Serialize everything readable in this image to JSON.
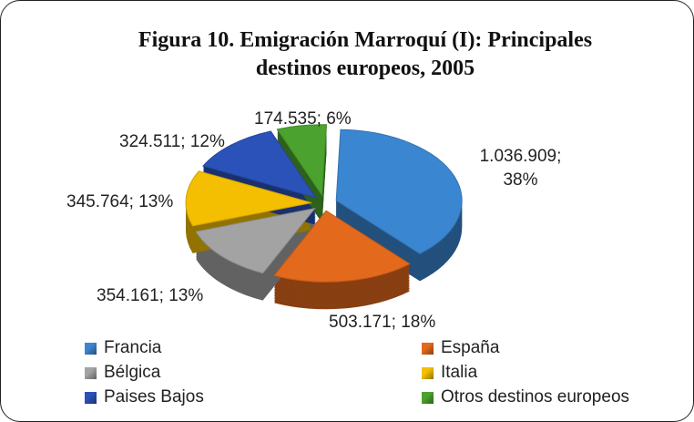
{
  "chart_data": {
    "type": "pie",
    "title": "Figura 10. Emigración Marroquí (I): Principales destinos europeos, 2005",
    "categories": [
      "Francia",
      "España",
      "Bélgica",
      "Italia",
      "Paises Bajos",
      "Otros destinos europeos"
    ],
    "values": [
      1036909,
      503171,
      354161,
      345764,
      324511,
      174535
    ],
    "value_labels": [
      "1.036.909; 38%",
      "503.171; 18%",
      "354.161; 13%",
      "345.764; 13%",
      "324.511; 12%",
      "174.535; 6%"
    ],
    "colors": [
      "#3b86d1",
      "#e3691c",
      "#a3a3a3",
      "#f3bf00",
      "#2b52b8",
      "#4ba22e"
    ],
    "legend": "bottom"
  }
}
